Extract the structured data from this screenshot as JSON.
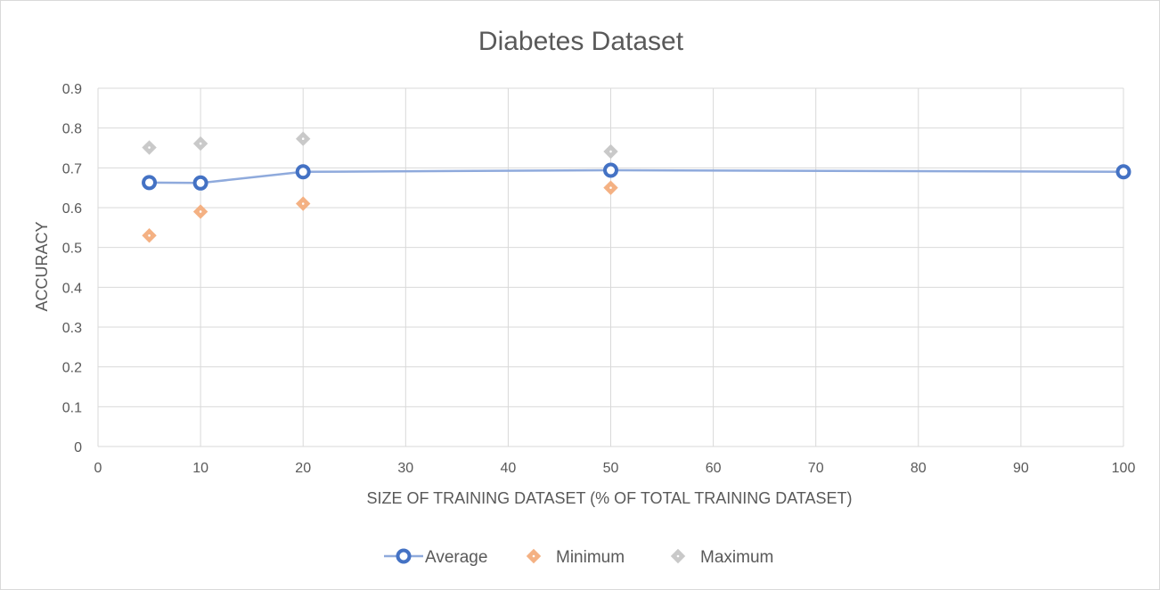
{
  "chart_data": {
    "type": "scatter",
    "title": "Diabetes Dataset",
    "xlabel": "SIZE OF TRAINING DATASET (% OF TOTAL TRAINING DATASET)",
    "ylabel": "ACCURACY",
    "xlim": [
      0,
      100
    ],
    "ylim": [
      0,
      0.9
    ],
    "xticks": [
      "0",
      "10",
      "20",
      "30",
      "40",
      "50",
      "60",
      "70",
      "80",
      "90",
      "100"
    ],
    "yticks": [
      "0",
      "0.1",
      "0.2",
      "0.3",
      "0.4",
      "0.5",
      "0.6",
      "0.7",
      "0.8",
      "0.9"
    ],
    "grid": true,
    "legend_position": "bottom",
    "series": [
      {
        "name": "Average",
        "style": "line-with-markers",
        "marker": "circle",
        "color": "#8FAADC",
        "marker_color": "#4472C4",
        "points": [
          [
            5,
            0.663
          ],
          [
            10,
            0.662
          ],
          [
            20,
            0.69
          ],
          [
            50,
            0.694
          ],
          [
            100,
            0.69
          ]
        ]
      },
      {
        "name": "Minimum",
        "style": "markers",
        "marker": "diamond",
        "color": "#F4B183",
        "points": [
          [
            5,
            0.53
          ],
          [
            10,
            0.59
          ],
          [
            20,
            0.61
          ],
          [
            50,
            0.65
          ]
        ]
      },
      {
        "name": "Maximum",
        "style": "markers",
        "marker": "diamond",
        "color": "#C9C9C9",
        "points": [
          [
            5,
            0.751
          ],
          [
            10,
            0.761
          ],
          [
            20,
            0.773
          ],
          [
            50,
            0.741
          ]
        ]
      }
    ]
  }
}
